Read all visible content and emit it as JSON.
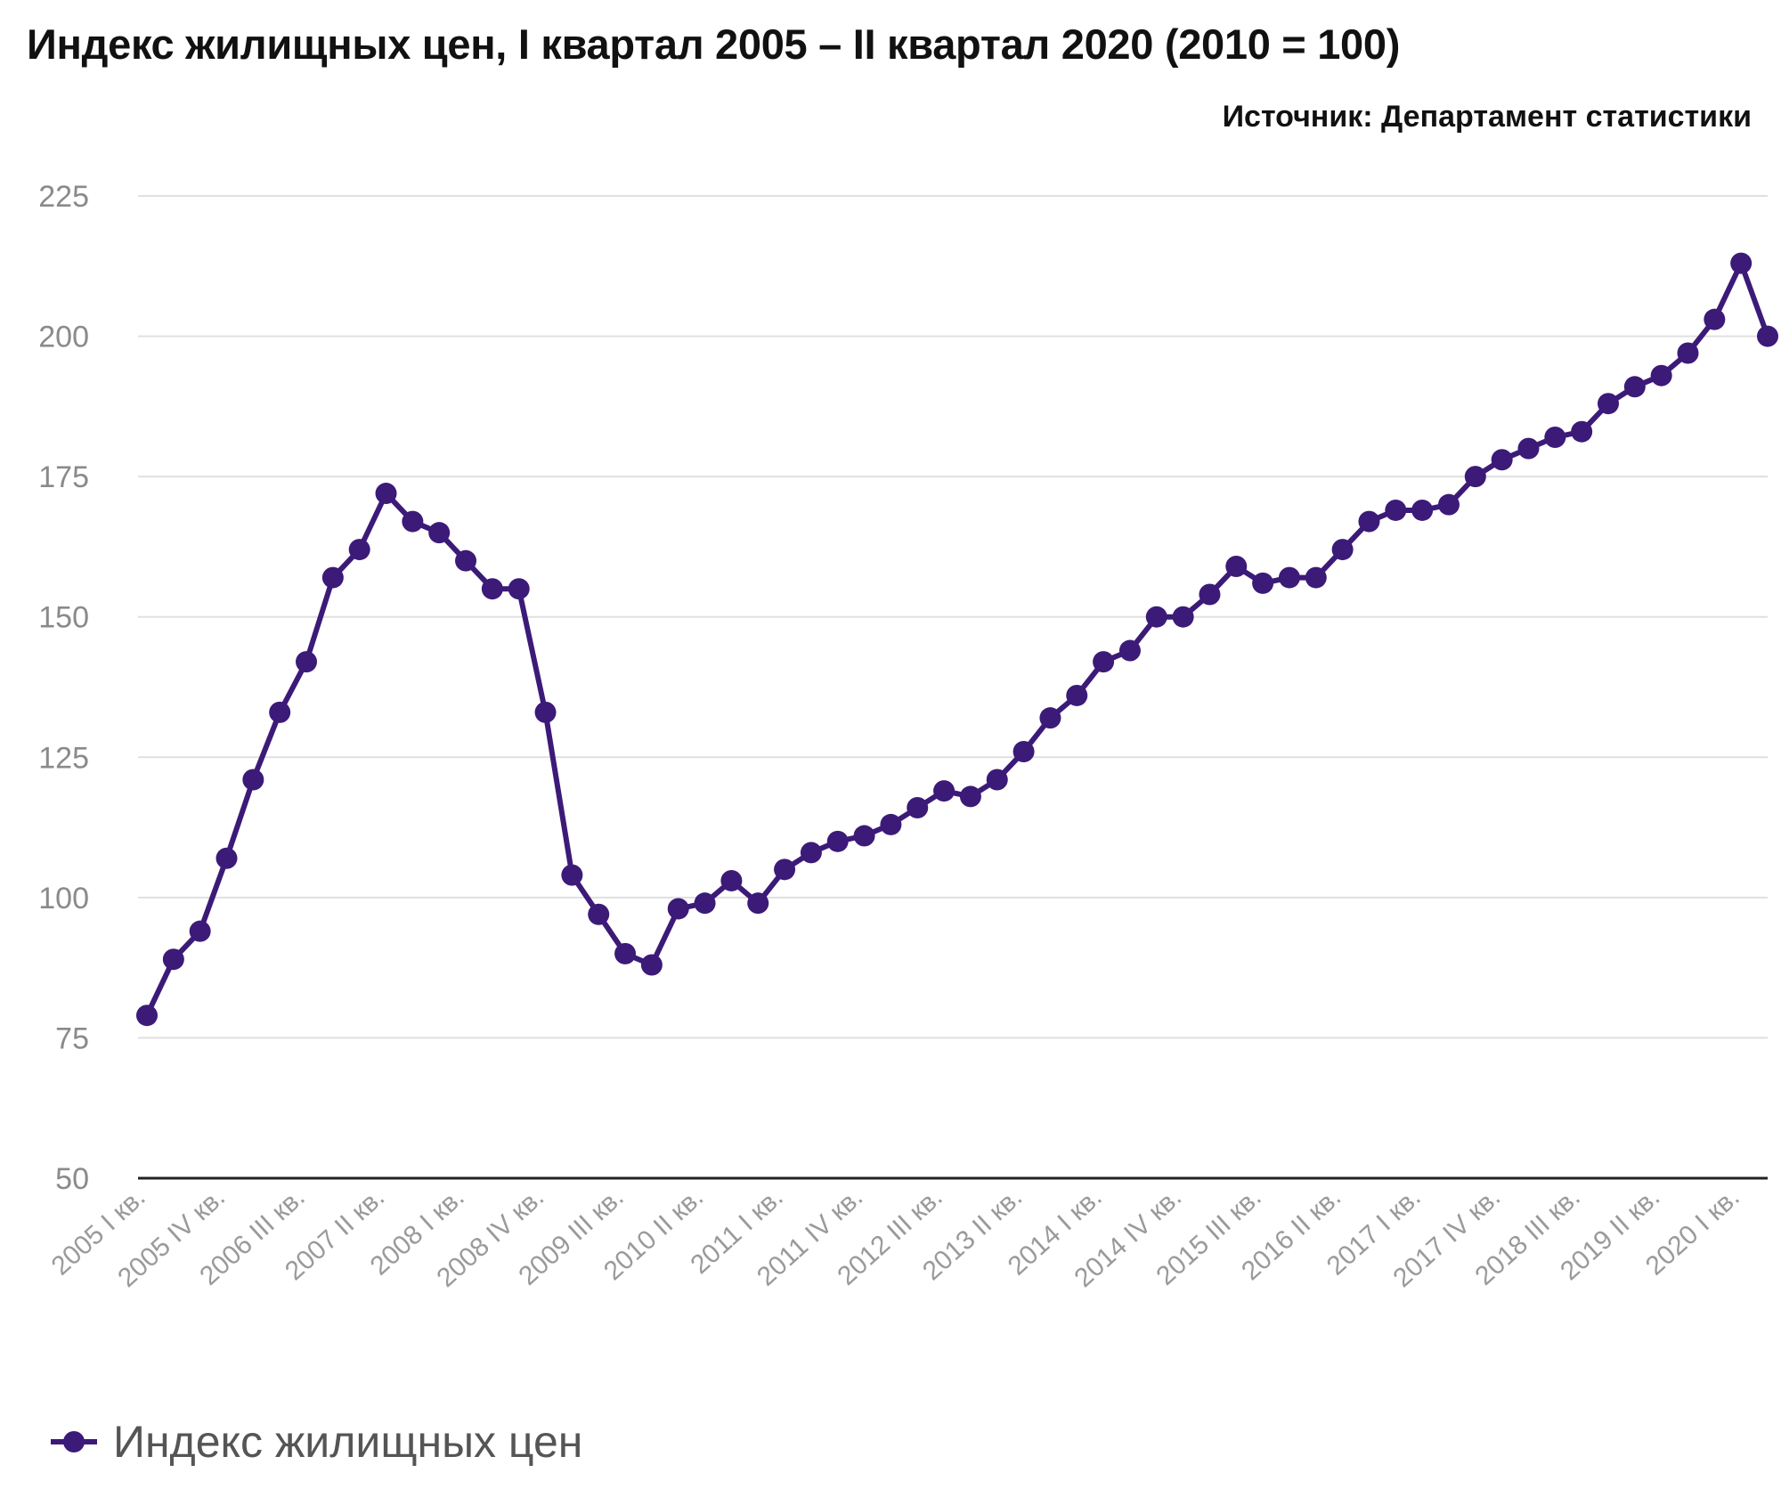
{
  "title": "Индекс жилищных цен, I квартал 2005 – II квартал 2020 (2010 = 100)",
  "source": "Источник: Департамент статистики",
  "colors": {
    "series": "#3c1a78",
    "grid": "#e0e0e0",
    "axis": "#222222"
  },
  "chart_data": {
    "type": "line",
    "title": "Индекс жилищных цен, I квартал 2005 – II квартал 2020 (2010 = 100)",
    "xlabel": "",
    "ylabel": "",
    "ylim": [
      50,
      225
    ],
    "yticks": [
      50,
      75,
      100,
      125,
      150,
      175,
      200,
      225
    ],
    "grid": true,
    "legend_position": "bottom-left",
    "x_tick_labels": [
      "2005 I кв.",
      "2005 IV кв.",
      "2006 III кв.",
      "2007 II кв.",
      "2008 I кв.",
      "2008 IV кв.",
      "2009 III кв.",
      "2010 II кв.",
      "2011 I кв.",
      "2011 IV кв.",
      "2012 III кв.",
      "2013 II кв.",
      "2014 I кв.",
      "2014 IV кв.",
      "2015 III кв.",
      "2016 II кв.",
      "2017 I кв.",
      "2017 IV кв.",
      "2018 III кв.",
      "2019 II кв.",
      "2020 I кв."
    ],
    "categories": [
      "2005 I кв.",
      "2005 II кв.",
      "2005 III кв.",
      "2005 IV кв.",
      "2006 I кв.",
      "2006 II кв.",
      "2006 III кв.",
      "2006 IV кв.",
      "2007 I кв.",
      "2007 II кв.",
      "2007 III кв.",
      "2007 IV кв.",
      "2008 I кв.",
      "2008 II кв.",
      "2008 III кв.",
      "2008 IV кв.",
      "2009 I кв.",
      "2009 II кв.",
      "2009 III кв.",
      "2009 IV кв.",
      "2010 I кв.",
      "2010 II кв.",
      "2010 III кв.",
      "2010 IV кв.",
      "2011 I кв.",
      "2011 II кв.",
      "2011 III кв.",
      "2011 IV кв.",
      "2012 I кв.",
      "2012 II кв.",
      "2012 III кв.",
      "2012 IV кв.",
      "2013 I кв.",
      "2013 II кв.",
      "2013 III кв.",
      "2013 IV кв.",
      "2014 I кв.",
      "2014 II кв.",
      "2014 III кв.",
      "2014 IV кв.",
      "2015 I кв.",
      "2015 II кв.",
      "2015 III кв.",
      "2015 IV кв.",
      "2016 I кв.",
      "2016 II кв.",
      "2016 III кв.",
      "2016 IV кв.",
      "2017 I кв.",
      "2017 II кв.",
      "2017 III кв.",
      "2017 IV кв.",
      "2018 I кв.",
      "2018 II кв.",
      "2018 III кв.",
      "2018 IV кв.",
      "2019 I кв.",
      "2019 II кв.",
      "2019 III кв.",
      "2019 IV кв.",
      "2020 I кв.",
      "2020 II кв."
    ],
    "series": [
      {
        "name": "Индекс жилищных цен",
        "values": [
          79,
          89,
          94,
          107,
          121,
          133,
          142,
          157,
          162,
          172,
          167,
          165,
          160,
          155,
          155,
          133,
          104,
          97,
          90,
          88,
          98,
          99,
          103,
          99,
          105,
          108,
          110,
          111,
          113,
          116,
          119,
          118,
          121,
          126,
          132,
          136,
          142,
          144,
          150,
          150,
          154,
          159,
          156,
          157,
          157,
          162,
          167,
          169,
          169,
          170,
          175,
          178,
          180,
          182,
          183,
          188,
          191,
          193,
          197,
          203,
          213,
          200
        ]
      }
    ]
  }
}
